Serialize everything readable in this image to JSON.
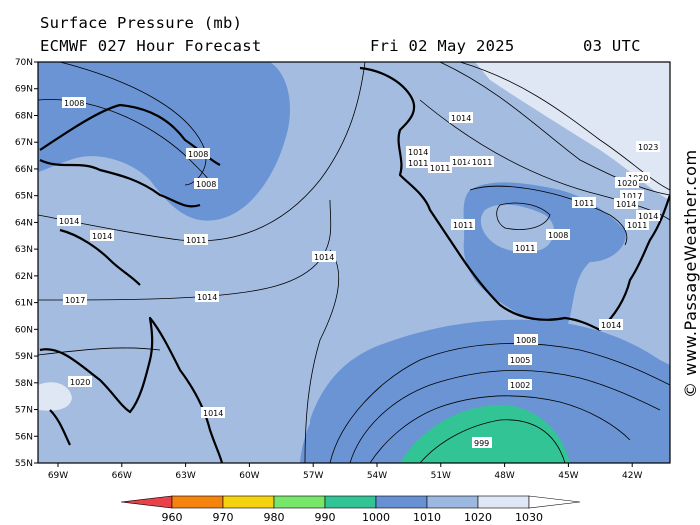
{
  "header": {
    "line1": "Surface Pressure (mb)",
    "model": "ECMWF 027 Hour Forecast",
    "date": "Fri 02 May 2025",
    "time": "03 UTC"
  },
  "credit": "© www.PassageWeather.com",
  "lat_labels": [
    "70N",
    "69N",
    "68N",
    "67N",
    "66N",
    "65N",
    "64N",
    "63N",
    "62N",
    "61N",
    "60N",
    "59N",
    "58N",
    "57N",
    "56N",
    "55N"
  ],
  "lon_labels": [
    "69W",
    "66W",
    "63W",
    "60W",
    "57W",
    "54W",
    "51W",
    "48W",
    "45W",
    "42W"
  ],
  "isobar_labels": {
    "l1008a": "1008",
    "l1008b": "1008",
    "l1008c": "1008",
    "l1008d": "1008",
    "l1014a": "1014",
    "l1014b": "1014",
    "l1014c": "1014",
    "l1014d": "1014",
    "l1014e": "1014",
    "l1014f": "1014",
    "l1014g": "1014",
    "l1014h": "1014",
    "l1014i": "1014",
    "l1014j": "1014",
    "l1014k": "1014",
    "l1014l": "1014",
    "l1011a": "1011",
    "l1011b": "1011",
    "l1011c": "1011",
    "l1011d": "1011",
    "l1011e": "1011",
    "l1011f": "1011",
    "l1011g": "1011",
    "l1011h": "1011",
    "l1017a": "1017",
    "l1017b": "1017",
    "l1020a": "1020",
    "l1020b": "1020",
    "l1020c": "1020",
    "l1023": "1023",
    "l1005": "1005",
    "l1002": "1002",
    "l999": "999"
  },
  "legend": {
    "ticks": [
      "960",
      "970",
      "980",
      "990",
      "1000",
      "1010",
      "1020",
      "1030"
    ],
    "colors": [
      "#e8414a",
      "#f5840f",
      "#f5d20f",
      "#78e66a",
      "#33c496",
      "#6791d3",
      "#9cb8e0",
      "#dfe7f4",
      "#ffffff"
    ]
  },
  "fill_colors": {
    "band_1020": "#dfe7f4",
    "band_1010": "#a3bce0",
    "band_1000": "#6a94d4",
    "band_990": "#33c496"
  }
}
